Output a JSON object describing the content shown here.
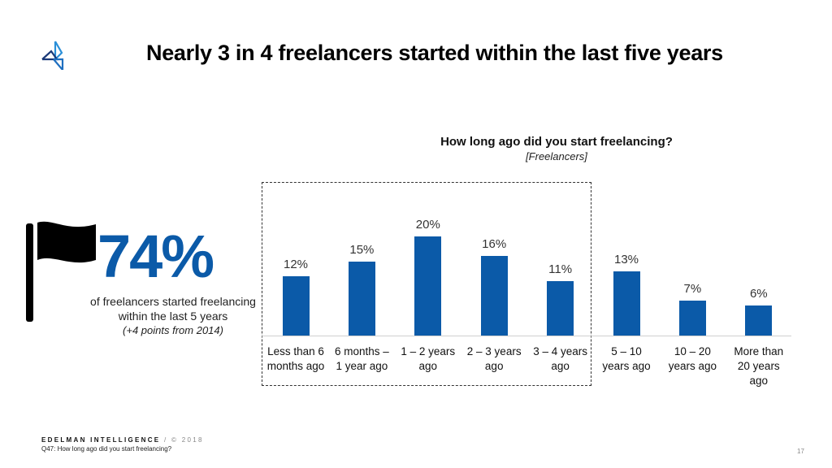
{
  "header": {
    "title": "Nearly 3 in 4 freelancers started within the last five years",
    "logo_icon": "edelman-logo-icon"
  },
  "callout": {
    "icon": "flag-icon",
    "big_number": "74%",
    "line1": "of freelancers started freelancing",
    "line2": "within the last 5 years",
    "note": "(+4 points from 2014)",
    "accent_color": "#0b5aa8"
  },
  "chart_data": {
    "type": "bar",
    "title": "How long ago did you start freelancing?",
    "subtitle": "[Freelancers]",
    "categories": [
      "Less than 6 months ago",
      "6 months – 1 year ago",
      "1 – 2 years ago",
      "2 – 3 years ago",
      "3 – 4 years ago",
      "5 – 10 years ago",
      "10 – 20 years ago",
      "More than 20 years ago"
    ],
    "category_lines": [
      [
        "Less than 6",
        "months ago"
      ],
      [
        "6 months –",
        "1 year ago"
      ],
      [
        "1 – 2 years",
        "ago"
      ],
      [
        "2 – 3 years",
        "ago"
      ],
      [
        "3 – 4 years",
        "ago"
      ],
      [
        "5 – 10",
        "years ago"
      ],
      [
        "10 – 20",
        "years ago"
      ],
      [
        "More than",
        "20 years",
        "ago"
      ]
    ],
    "values": [
      12,
      15,
      20,
      16,
      11,
      13,
      7,
      6
    ],
    "labels": [
      "12%",
      "15%",
      "20%",
      "16%",
      "11%",
      "13%",
      "7%",
      "6%"
    ],
    "xlabel": "",
    "ylabel": "",
    "ylim": [
      0,
      20
    ],
    "grid": false,
    "legend": "none",
    "bar_color": "#0b5aa8",
    "highlight_box": "First five categories (less than 5 years) enclosed in dashed box"
  },
  "footer": {
    "brand": "EDELMAN INTELLIGENCE",
    "copyright": " / © 2018",
    "question": "Q47: How long ago did you start freelancing?",
    "page_number": "17"
  }
}
